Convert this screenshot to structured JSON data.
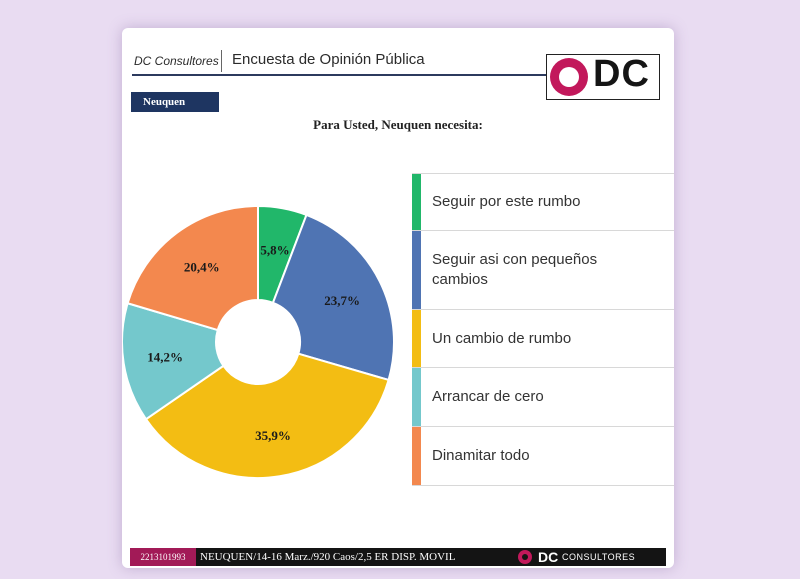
{
  "header": {
    "brand": "DC Consultores",
    "title": "Encuesta de Opinión Pública",
    "logo_text": "DC"
  },
  "region_tag": "Neuquen",
  "question": "Para Usted, Neuquen necesita:",
  "chart_data": {
    "type": "pie",
    "donut": true,
    "title": "Para Usted, Neuquen necesita:",
    "legend_position": "right",
    "slices": [
      {
        "label": "Seguir por este rumbo",
        "value": 5.8,
        "display": "5,8%",
        "color": "#21b76a"
      },
      {
        "label": "Seguir asi con pequeños cambios",
        "value": 23.7,
        "display": "23,7%",
        "color": "#4f74b3"
      },
      {
        "label": "Un cambio de rumbo",
        "value": 35.9,
        "display": "35,9%",
        "color": "#f3bd13"
      },
      {
        "label": "Arrancar de cero",
        "value": 14.2,
        "display": "14,2%",
        "color": "#74c8cc"
      },
      {
        "label": "Dinamitar todo",
        "value": 20.4,
        "display": "20,4%",
        "color": "#f3884e"
      }
    ]
  },
  "legend_labels": [
    "Seguir por este rumbo",
    "Seguir asi con pequeños cambios",
    "Un cambio de rumbo",
    "Arrancar de cero",
    "Dinamitar todo"
  ],
  "footer": {
    "code": "2213101993",
    "info": "NEUQUEN/14-16 Marz./920 Caos/2,5 ER DISP. MOVIL",
    "logo_dc": "DC",
    "logo_word": "CONSULTORES"
  }
}
